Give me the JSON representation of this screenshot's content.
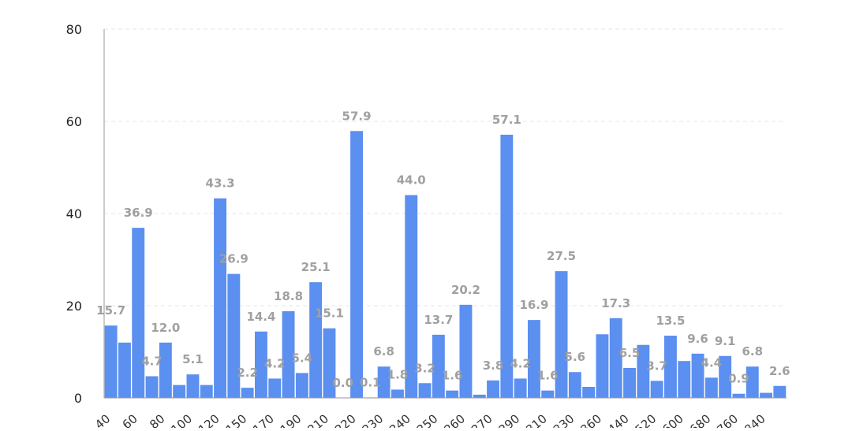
{
  "chart_data": {
    "type": "bar",
    "title": "",
    "xlabel": "",
    "ylabel": "",
    "ylim": [
      0,
      80
    ],
    "yticks": [
      0,
      20,
      40,
      60,
      80
    ],
    "grid": true,
    "legend": "none",
    "bar_color": "#5b8ff0",
    "label_color": "#a0a0a0",
    "categories": [
      "40",
      "",
      "60",
      "",
      "80",
      "",
      "100",
      "",
      "120",
      "",
      "150",
      "",
      "170",
      "",
      "190",
      "",
      "210",
      "",
      "220",
      "",
      "230",
      "",
      "240",
      "",
      "250",
      "",
      "260",
      "",
      "270",
      "",
      "290",
      "",
      "310",
      "",
      "330",
      "",
      "360",
      "",
      "440",
      "",
      "520",
      "",
      "600",
      "",
      "680",
      "",
      "760",
      "",
      "840",
      ""
    ],
    "values": [
      15.7,
      12.0,
      36.9,
      4.7,
      12.0,
      2.8,
      5.1,
      2.8,
      43.3,
      26.9,
      2.2,
      14.4,
      4.2,
      18.8,
      5.4,
      25.1,
      15.1,
      0.0,
      57.9,
      0.1,
      6.8,
      1.8,
      44.0,
      3.2,
      13.7,
      1.6,
      20.2,
      0.7,
      3.8,
      57.1,
      4.2,
      16.9,
      1.6,
      27.5,
      5.6,
      2.4,
      13.8,
      17.3,
      6.5,
      11.5,
      3.7,
      13.5,
      8.0,
      9.6,
      4.4,
      9.1,
      0.9,
      6.8,
      1.1,
      2.6
    ],
    "data_labels": [
      "15.7",
      "",
      "36.9",
      "4.7",
      "12.0",
      "",
      "5.1",
      "",
      "43.3",
      "26.9",
      "2.2",
      "14.4",
      "4.2",
      "18.8",
      "5.4",
      "25.1",
      "15.1",
      "0.0",
      "57.9",
      "0.1",
      "6.8",
      "1.8",
      "44.0",
      "3.2",
      "13.7",
      "1.6",
      "20.2",
      "",
      "3.8",
      "57.1",
      "4.2",
      "16.9",
      "1.6",
      "27.5",
      "5.6",
      "",
      "",
      "17.3",
      "6.5",
      "",
      "3.7",
      "13.5",
      "",
      "9.6",
      "4.4",
      "9.1",
      "0.9",
      "6.8",
      "",
      "2.6"
    ]
  }
}
